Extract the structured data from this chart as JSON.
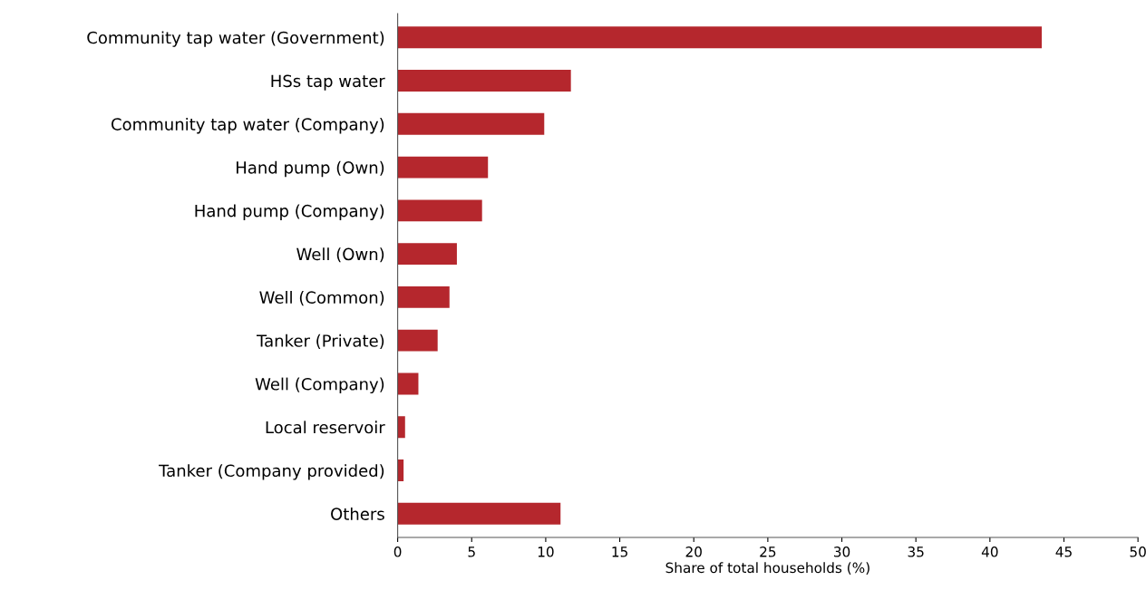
{
  "chart_data": {
    "type": "bar",
    "orientation": "horizontal",
    "xlabel": "Share of total households (%)",
    "categories": [
      "Community tap water (Government)",
      "HSs tap water",
      "Community tap water (Company)",
      "Hand pump (Own)",
      "Hand pump (Company)",
      "Well (Own)",
      "Well (Common)",
      "Tanker (Private)",
      "Well (Company)",
      "Local reservoir",
      "Tanker (Company provided)",
      "Others"
    ],
    "values": [
      43.5,
      11.7,
      9.9,
      6.1,
      5.7,
      4.0,
      3.5,
      2.7,
      1.4,
      0.5,
      0.4,
      11.0
    ],
    "color": "#b5272d",
    "xlim": [
      0,
      50
    ],
    "xticks": [
      0,
      5,
      10,
      15,
      20,
      25,
      30,
      35,
      40,
      45,
      50
    ],
    "grid": false,
    "legend": false
  }
}
